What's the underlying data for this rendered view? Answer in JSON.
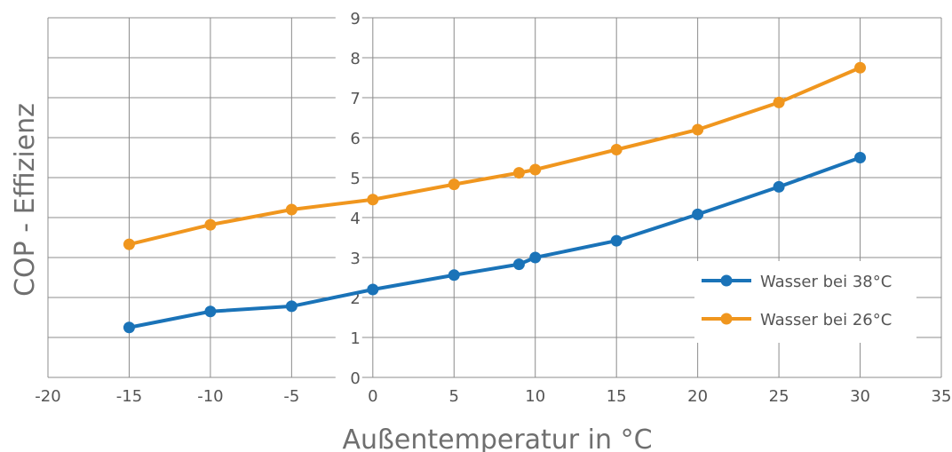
{
  "chart_data": {
    "type": "line",
    "xlabel": "Außentemperatur in °C",
    "ylabel": "COP - Effizienz",
    "xlim": [
      -20,
      35
    ],
    "ylim": [
      0,
      9
    ],
    "xticks": [
      "-20",
      "-15",
      "-10",
      "-5",
      "0",
      "5",
      "10",
      "15",
      "20",
      "25",
      "30",
      "35"
    ],
    "yticks": [
      "0",
      "1",
      "2",
      "3",
      "4",
      "5",
      "6",
      "7",
      "8",
      "9"
    ],
    "grid": true,
    "legend_position": "right",
    "series": [
      {
        "name": "Wasser bei 38°C",
        "color": "#1a73b8",
        "x": [
          -15,
          -10,
          -5,
          0,
          5,
          9,
          10,
          15,
          20,
          25,
          30
        ],
        "y": [
          1.25,
          1.65,
          1.78,
          2.2,
          2.56,
          2.83,
          3.0,
          3.42,
          4.08,
          4.77,
          5.5
        ]
      },
      {
        "name": "Wasser bei 26°C",
        "color": "#f0961e",
        "x": [
          -15,
          -10,
          -5,
          0,
          5,
          9,
          10,
          15,
          20,
          25,
          30
        ],
        "y": [
          3.33,
          3.82,
          4.2,
          4.45,
          4.83,
          5.12,
          5.2,
          5.7,
          6.2,
          6.88,
          7.75
        ]
      }
    ]
  }
}
